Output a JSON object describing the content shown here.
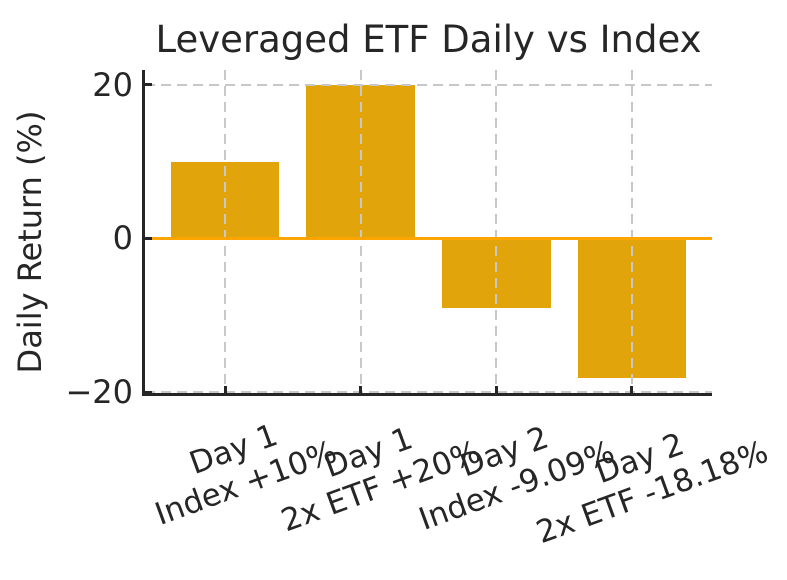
{
  "chart_data": {
    "type": "bar",
    "title": "Leveraged ETF Daily vs Index",
    "ylabel": "Daily Return (%)",
    "xlabel": "",
    "categories": [
      "Day 1\nIndex +10%",
      "Day 1\n2x ETF +20%",
      "Day 2\nIndex -9.09%",
      "Day 2\n2x ETF -18.18%"
    ],
    "values": [
      10,
      20,
      -9.09,
      -18.18
    ],
    "yticks": [
      20,
      0,
      -20
    ],
    "ytick_labels": [
      "20",
      "0",
      "−20"
    ],
    "ylim": [
      -20.09,
      21.91
    ],
    "xlim": [
      -0.59,
      3.59
    ],
    "bar_width": 0.8,
    "x_tick_label_rotation_deg": 20,
    "grid": "dashed, vertical per category and horizontal at y-ticks, drawn above bars",
    "legend_position": "none",
    "zero_line_y": 0,
    "colors": {
      "bar": "#E2A40B",
      "zero_line": "#FFA500",
      "axis": "#262626",
      "grid": "#C8C8C8",
      "text": "#262626",
      "background": "#FFFFFF"
    }
  }
}
